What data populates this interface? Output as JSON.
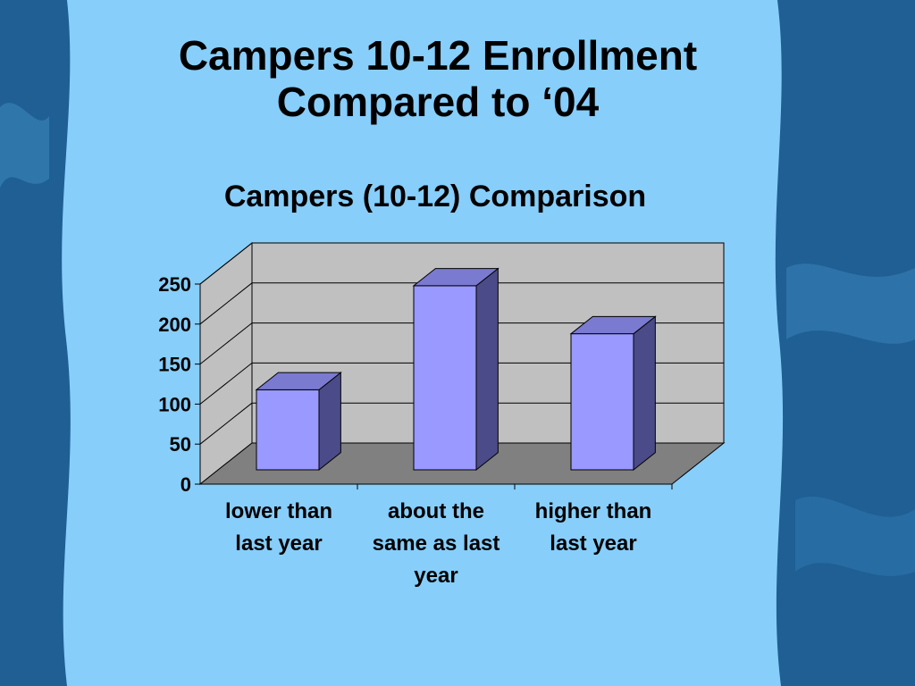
{
  "slide": {
    "title_line1": "Campers 10-12 Enrollment",
    "title_line2": "Compared to ‘04"
  },
  "colors": {
    "slide_panel": "#87cefa",
    "bar_front": "#9999ff",
    "bar_side": "#4b4b8a",
    "bar_top": "#7a7ad0",
    "chart_wall": "#c0c0c0",
    "chart_floor": "#808080",
    "ocean_frame": "#1f5f94"
  },
  "chart_data": {
    "type": "bar",
    "title": "Campers (10-12) Comparison",
    "categories": [
      [
        "lower than",
        "last year"
      ],
      [
        "about the",
        "same as last",
        "year"
      ],
      [
        "higher than",
        "last year"
      ]
    ],
    "values": [
      100,
      230,
      170
    ],
    "ylim": [
      0,
      250
    ],
    "yticks": [
      0,
      50,
      100,
      150,
      200,
      250
    ],
    "xlabel": "",
    "ylabel": "",
    "grid": true,
    "style": "3d",
    "legend": "none"
  }
}
